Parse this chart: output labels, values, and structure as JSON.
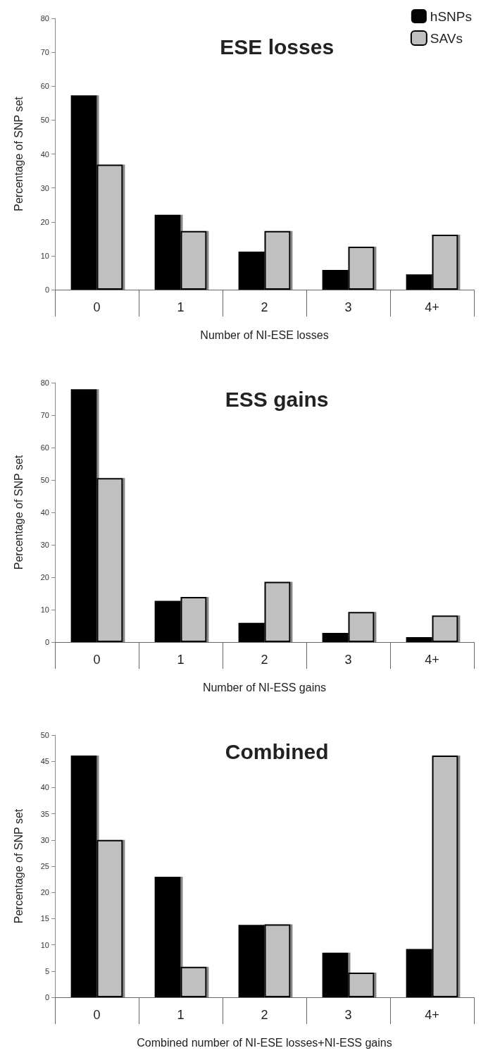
{
  "chart_data": [
    {
      "type": "bar",
      "title": "ESE losses",
      "xlabel": "Number of NI-ESE losses",
      "ylabel": "Percentage of SNP set",
      "categories": [
        "0",
        "1",
        "2",
        "3",
        "4+"
      ],
      "series": [
        {
          "name": "hSNPs",
          "color": "#050505",
          "values": [
            57.3,
            22.1,
            11.2,
            5.8,
            4.5
          ]
        },
        {
          "name": "SAVs",
          "color": "#c0c0c0",
          "values": [
            36.9,
            17.3,
            17.3,
            12.7,
            16.2
          ]
        }
      ],
      "ylim": [
        0,
        80
      ],
      "yticks": [
        0,
        10,
        20,
        30,
        40,
        50,
        60,
        70,
        80
      ],
      "grid": false,
      "legend": "top right"
    },
    {
      "type": "bar",
      "title": "ESS gains",
      "xlabel": "Number of NI-ESS gains",
      "ylabel": "Percentage of SNP set",
      "categories": [
        "0",
        "1",
        "2",
        "3",
        "4+"
      ],
      "series": [
        {
          "color": "#050505",
          "values": [
            78,
            12.7,
            5.9,
            2.8,
            1.5
          ]
        },
        {
          "color": "#c0c0c0",
          "values": [
            50.6,
            13.9,
            18.6,
            9.3,
            8.2
          ]
        }
      ],
      "ylim": [
        0,
        80
      ],
      "yticks": [
        0,
        10,
        20,
        30,
        40,
        50,
        60,
        70,
        80
      ],
      "grid": false
    },
    {
      "type": "bar",
      "title": "Combined",
      "xlabel": "Combined number of NI-ESE losses+NI-ESS gains",
      "ylabel": "Percentage of SNP set",
      "categories": [
        "0",
        "1",
        "2",
        "3",
        "4+"
      ],
      "series": [
        {
          "color": "#050505",
          "values": [
            46.1,
            23.0,
            13.8,
            8.5,
            9.2
          ]
        },
        {
          "color": "#c0c0c0",
          "values": [
            30.0,
            5.8,
            13.9,
            4.7,
            46.1
          ]
        }
      ],
      "ylim": [
        0,
        50
      ],
      "yticks": [
        0,
        5,
        10,
        15,
        20,
        25,
        30,
        35,
        40,
        45,
        50
      ],
      "grid": false
    }
  ]
}
